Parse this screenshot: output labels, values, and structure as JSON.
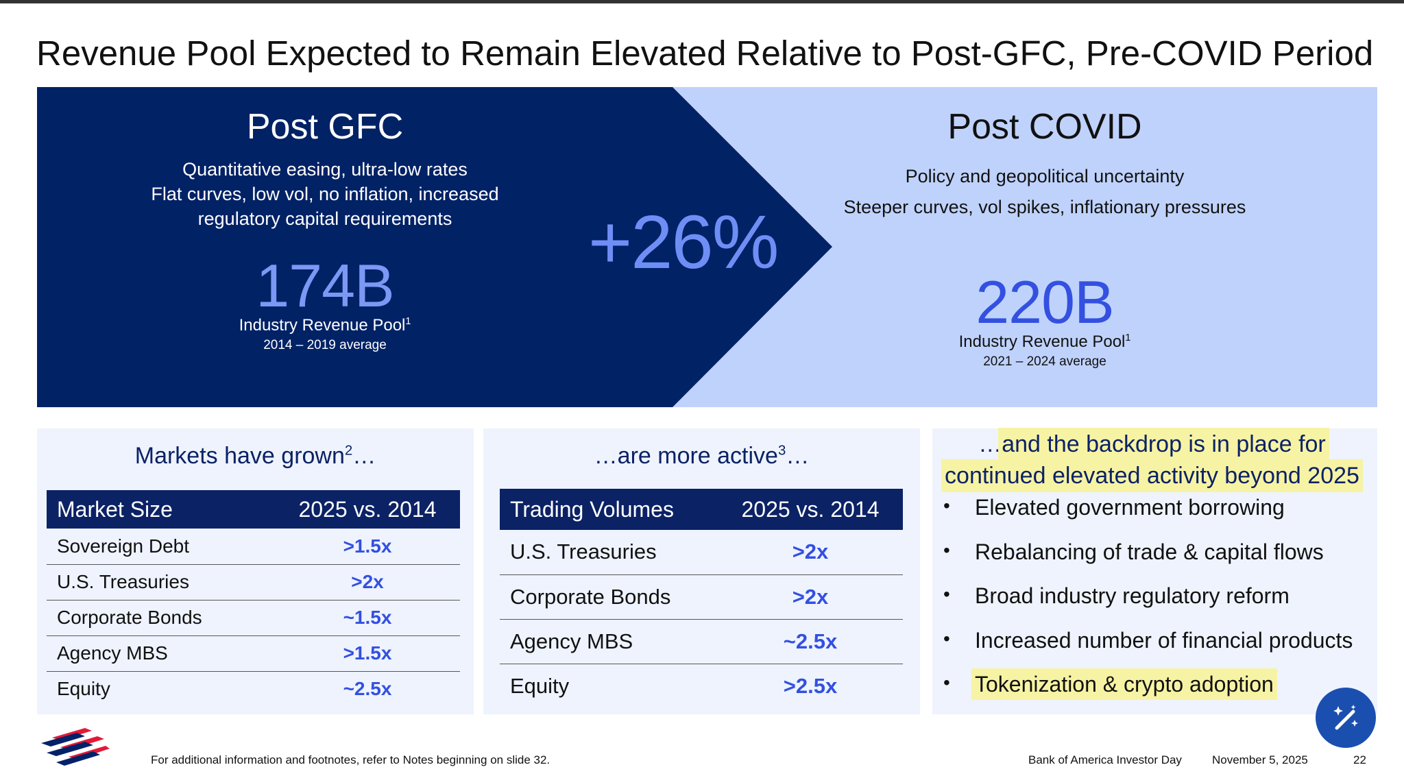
{
  "title": "Revenue Pool Expected to Remain Elevated Relative to Post-GFC, Pre-COVID Period",
  "colors": {
    "navy": "#0b2265",
    "light_blue": "#bfd2fc",
    "accent_blue": "#3350e0",
    "big_number_light": "#7c98f5",
    "panel_bg": "#eef3fe",
    "highlight": "#f7f3a4"
  },
  "hero": {
    "gfc": {
      "title": "Post GFC",
      "desc_lines": [
        "Quantitative easing, ultra-low rates",
        "Flat curves, low vol, no inflation, increased",
        "regulatory capital requirements"
      ],
      "value": "174B",
      "label": "Industry Revenue Pool",
      "label_sup": "1",
      "period": "2014 – 2019 average"
    },
    "change": "+26%",
    "covid": {
      "title": "Post COVID",
      "desc_lines": [
        "Policy and geopolitical uncertainty",
        "Steeper curves, vol spikes, inflationary pressures"
      ],
      "value": "220B",
      "label": "Industry Revenue Pool",
      "label_sup": "1",
      "period": "2021 – 2024 average"
    }
  },
  "markets": {
    "title": "Markets have grown",
    "title_sup": "2",
    "title_suffix": "…",
    "headers": [
      "Market Size",
      "2025 vs. 2014"
    ],
    "rows": [
      [
        "Sovereign Debt",
        ">1.5x"
      ],
      [
        "U.S. Treasuries",
        ">2x"
      ],
      [
        "Corporate Bonds",
        "~1.5x"
      ],
      [
        "Agency MBS",
        ">1.5x"
      ],
      [
        "Equity",
        "~2.5x"
      ]
    ]
  },
  "active": {
    "title_prefix": "…are more active",
    "title_sup": "3",
    "title_suffix": "…",
    "headers": [
      "Trading Volumes",
      "2025 vs. 2014"
    ],
    "rows": [
      [
        "U.S. Treasuries",
        ">2x"
      ],
      [
        "Corporate Bonds",
        ">2x"
      ],
      [
        "Agency MBS",
        "~2.5x"
      ],
      [
        "Equity",
        ">2.5x"
      ]
    ]
  },
  "backdrop": {
    "title_line1_prefix": "…",
    "title_line1": "and the backdrop is in place for",
    "title_line2": "continued elevated activity beyond 2025",
    "bullets": [
      "Elevated government borrowing",
      "Rebalancing of trade & capital flows",
      "Broad industry regulatory reform",
      "Increased number of financial products",
      "Tokenization & crypto adoption"
    ]
  },
  "footer": {
    "note": "For additional information and footnotes, refer to Notes beginning on slide 32.",
    "event": "Bank of America Investor Day",
    "date": "November 5, 2025",
    "page": "22"
  },
  "icons": {
    "logo": "bank-of-america-flag-logo",
    "assistant": "magic-wand-icon"
  }
}
